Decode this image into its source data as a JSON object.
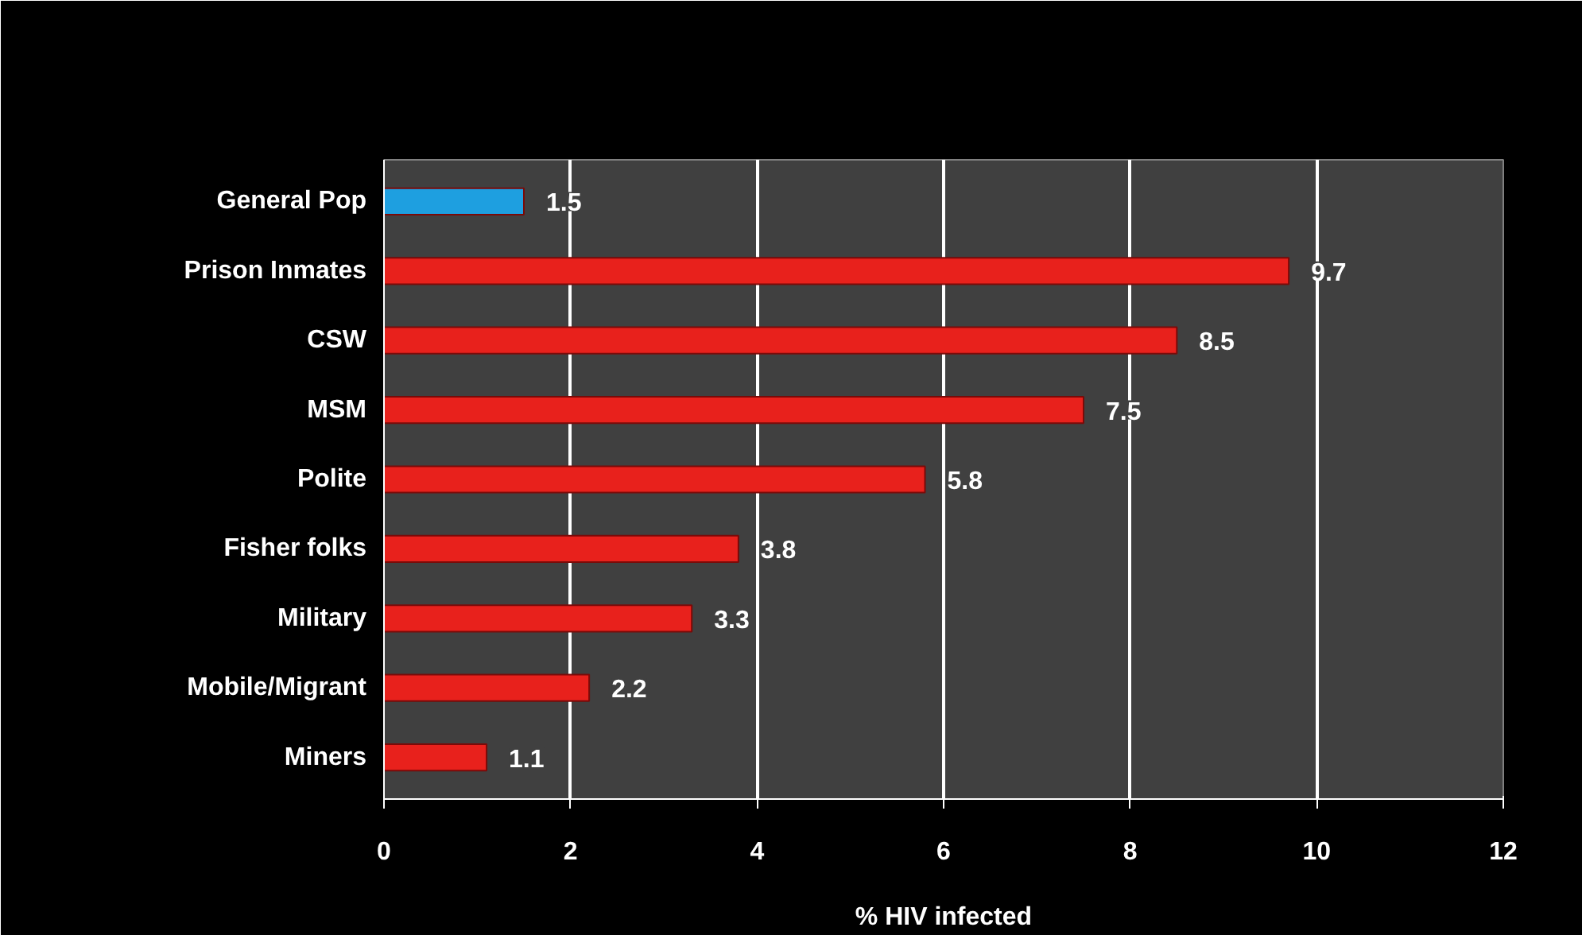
{
  "chart_data": {
    "type": "bar",
    "orientation": "horizontal",
    "xlabel": "% HIV infected",
    "categories": [
      "General Pop",
      "Prison Inmates",
      "CSW",
      "MSM",
      "Polite",
      "Fisher folks",
      "Military",
      "Mobile/Migrant",
      "Miners"
    ],
    "values": [
      1.5,
      9.7,
      8.5,
      7.5,
      5.8,
      3.8,
      3.3,
      2.2,
      1.1
    ],
    "colors": [
      "#1e9fe0",
      "#e8211c",
      "#e8211c",
      "#e8211c",
      "#e8211c",
      "#e8211c",
      "#e8211c",
      "#e8211c",
      "#e8211c"
    ],
    "xlim": [
      0,
      12
    ],
    "xticks": [
      0,
      2,
      4,
      6,
      8,
      10,
      12
    ],
    "grid": "x",
    "data_labels": true
  }
}
